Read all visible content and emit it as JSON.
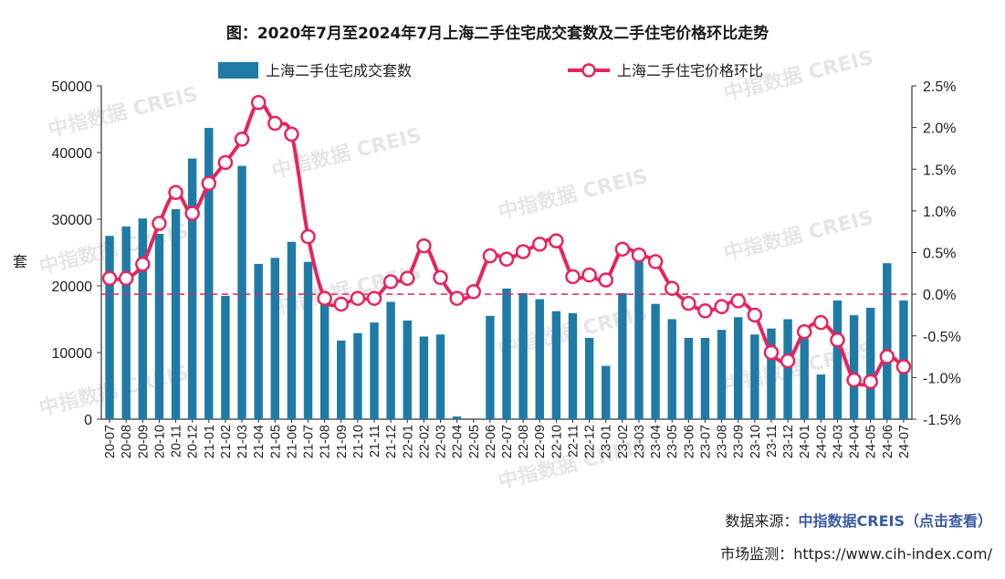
{
  "chart_data": {
    "type": "bar+line",
    "title": "图：2020年7月至2024年7月上海二手住宅成交套数及二手住宅价格环比走势",
    "ylabel": "套",
    "ylim": [
      0,
      50000
    ],
    "y_ticks": [
      "0",
      "10000",
      "20000",
      "30000",
      "40000",
      "50000"
    ],
    "y2lim": [
      -1.5,
      2.5
    ],
    "y2_ticks": [
      "-1.5%",
      "-1.0%",
      "-0.5%",
      "0.0%",
      "0.5%",
      "1.0%",
      "1.5%",
      "2.0%",
      "2.5%"
    ],
    "categories": [
      "20-07",
      "20-08",
      "20-09",
      "20-10",
      "20-11",
      "20-12",
      "21-01",
      "21-02",
      "21-03",
      "21-04",
      "21-05",
      "21-06",
      "21-07",
      "21-08",
      "21-09",
      "21-10",
      "21-11",
      "21-12",
      "22-01",
      "22-02",
      "22-03",
      "22-04",
      "22-05",
      "22-06",
      "22-07",
      "22-08",
      "22-09",
      "22-10",
      "22-11",
      "22-12",
      "23-01",
      "23-02",
      "23-03",
      "23-04",
      "23-05",
      "23-06",
      "23-07",
      "23-08",
      "23-09",
      "23-10",
      "23-11",
      "23-12",
      "24-01",
      "24-02",
      "24-03",
      "24-04",
      "24-05",
      "24-06",
      "24-07"
    ],
    "series": [
      {
        "name": "上海二手住宅成交套数",
        "type": "bar",
        "axis": "left",
        "color": "#1f7ba6",
        "values": [
          27500,
          28900,
          30100,
          27800,
          31500,
          39100,
          43700,
          18500,
          38000,
          23300,
          24200,
          26600,
          23600,
          17400,
          11800,
          12900,
          14500,
          17600,
          14800,
          12400,
          12700,
          400,
          0,
          15500,
          19600,
          18900,
          18000,
          16200,
          15900,
          12200,
          8000,
          18900,
          24300,
          17300,
          15000,
          12200,
          12200,
          13400,
          15300,
          12700,
          13600,
          15000,
          12100,
          6700,
          17800,
          15600,
          16700,
          23400,
          17800
        ]
      },
      {
        "name": "上海二手住宅价格环比",
        "type": "line",
        "axis": "right",
        "color": "#e6245e",
        "values": [
          0.19,
          0.19,
          0.36,
          0.85,
          1.22,
          0.97,
          1.33,
          1.58,
          1.86,
          2.3,
          2.05,
          1.92,
          0.69,
          -0.05,
          -0.12,
          -0.05,
          -0.05,
          0.15,
          0.19,
          0.58,
          0.2,
          -0.05,
          0.03,
          0.46,
          0.42,
          0.51,
          0.6,
          0.64,
          0.21,
          0.23,
          0.17,
          0.54,
          0.47,
          0.39,
          0.07,
          -0.11,
          -0.2,
          -0.15,
          -0.08,
          -0.25,
          -0.7,
          -0.8,
          -0.45,
          -0.34,
          -0.55,
          -1.03,
          -1.05,
          -0.75,
          -0.87
        ]
      }
    ],
    "reference_line": 0.0,
    "legend_position": "top",
    "grid": false
  },
  "watermark": "中指数据 CREIS",
  "footer": {
    "source_label": "数据来源：",
    "source_link": "中指数据CREIS（点击查看）",
    "monitor_label": "市场监测：",
    "monitor_url": "https://www.cih-index.com/"
  }
}
